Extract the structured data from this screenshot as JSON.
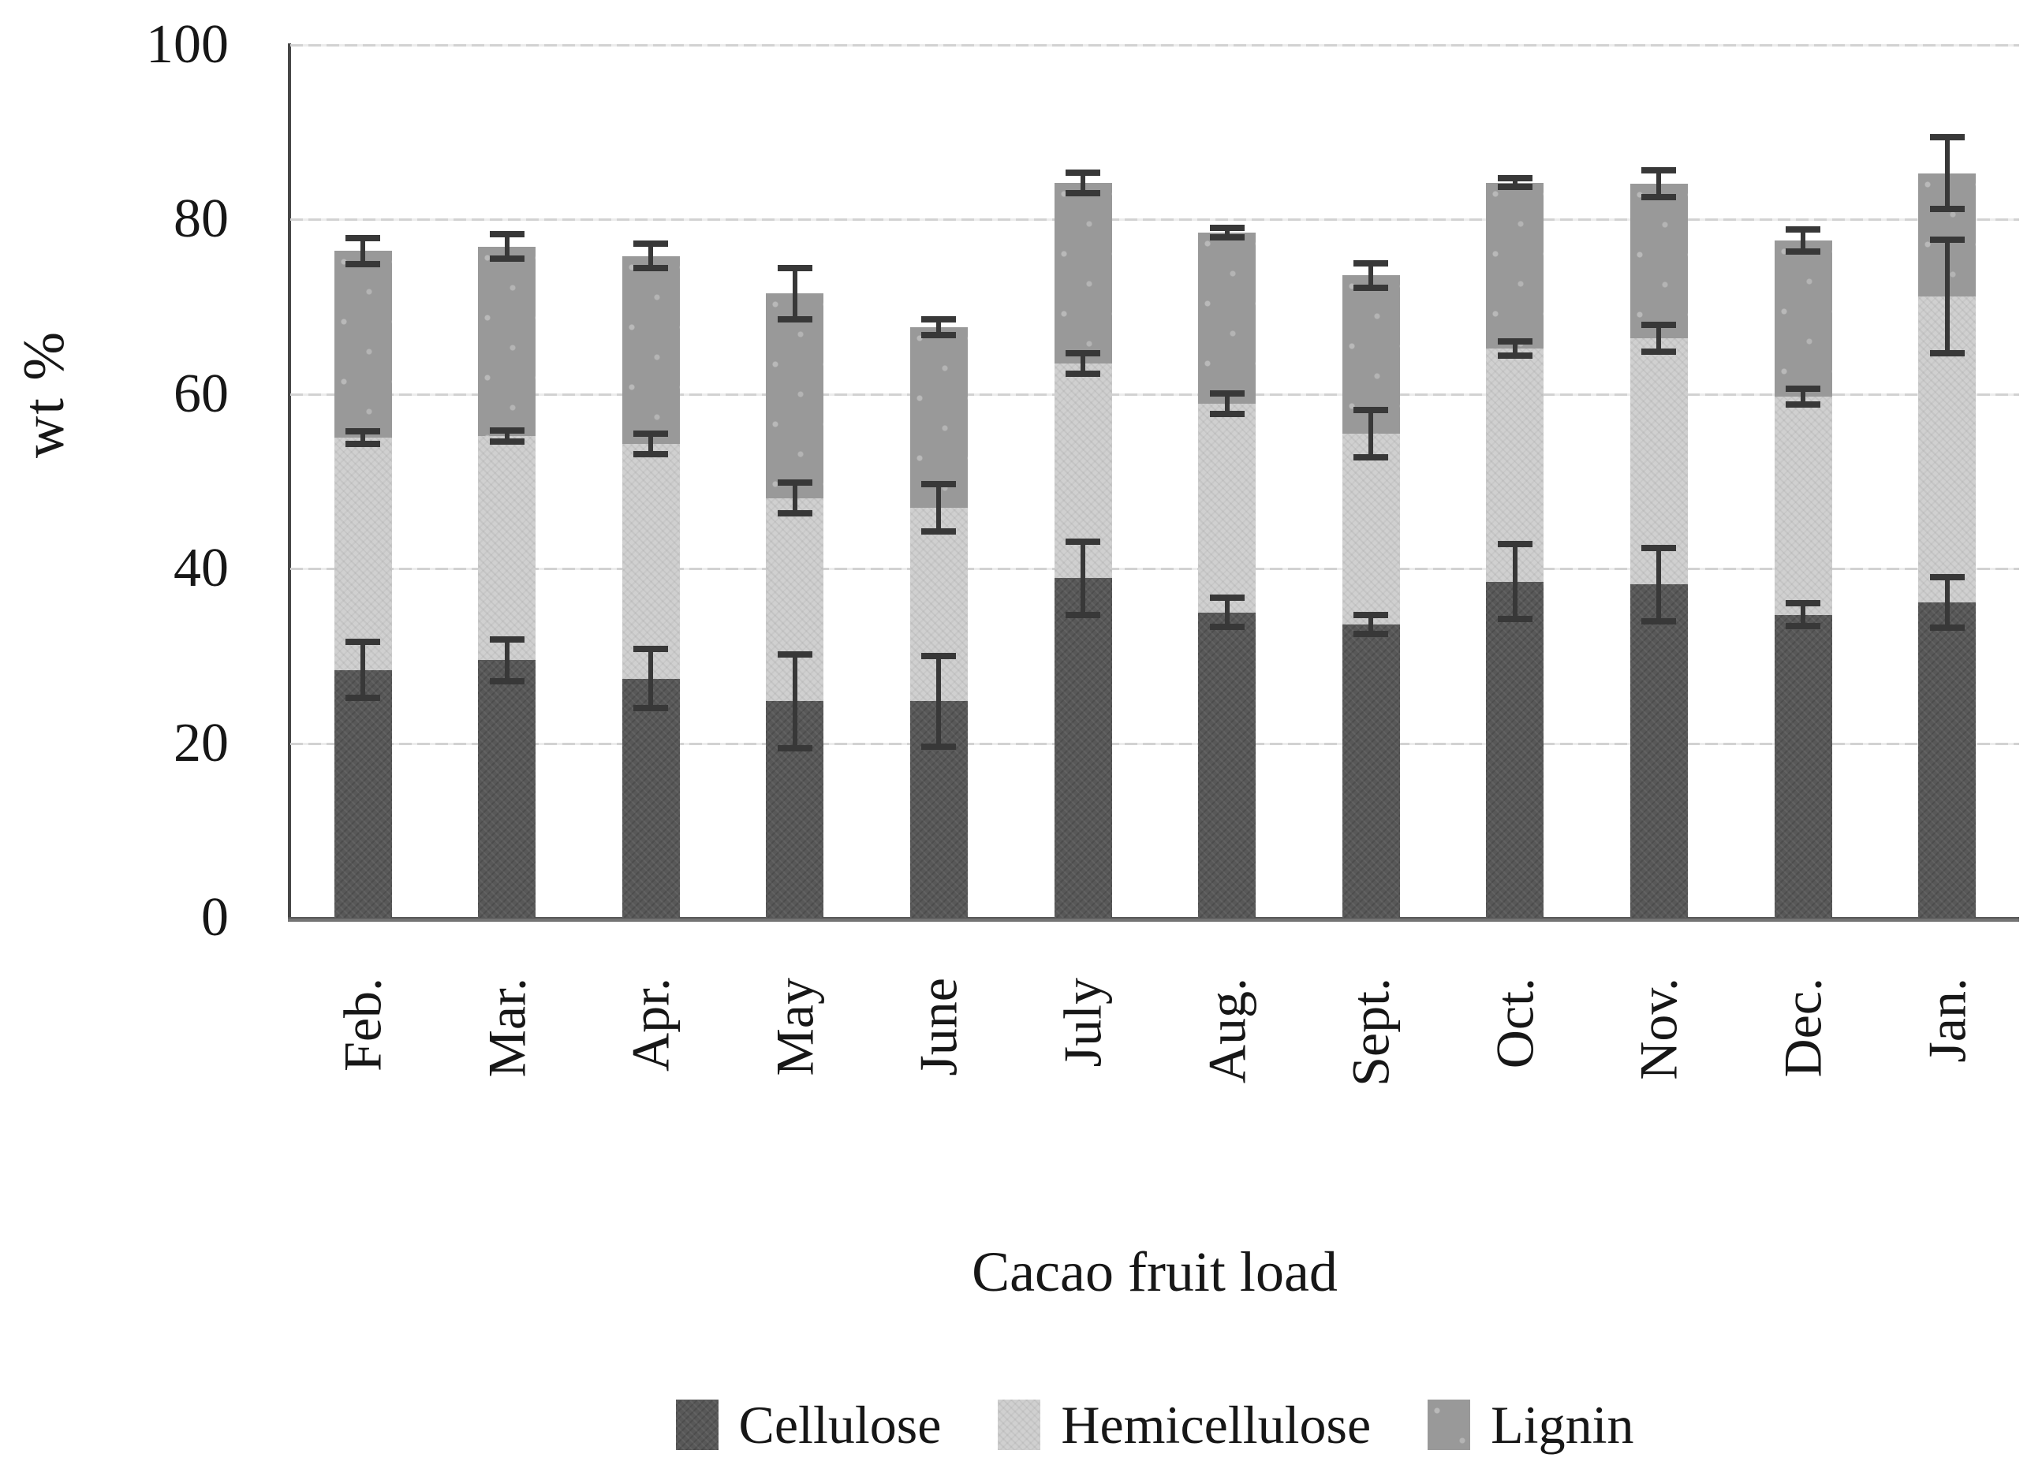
{
  "y_axis": {
    "title": "wt %",
    "ticks": [
      0,
      20,
      40,
      60,
      80,
      100
    ],
    "max": 100
  },
  "x_axis": {
    "title": "Cacao fruit load"
  },
  "legend": {
    "items": [
      "Cellulose",
      "Hemicellulose",
      "Lignin"
    ]
  },
  "colors": {
    "cellulose": "#585858",
    "hemicellulose": "#d0d0d0",
    "lignin": "#999999",
    "error_bar": "#383838",
    "gridline": "#d2d2d2",
    "axis": "#474747",
    "background": "#ffffff"
  },
  "chart_data": {
    "type": "bar",
    "stacked": true,
    "title": "",
    "xlabel": "Cacao fruit load",
    "ylabel": "wt %",
    "ylim": [
      0,
      100
    ],
    "grid": true,
    "legend_position": "bottom",
    "error_bars": true,
    "categories": [
      "Feb.",
      "Mar.",
      "Apr.",
      "May",
      "June",
      "July",
      "Aug.",
      "Sept.",
      "Oct.",
      "Nov.",
      "Dec.",
      "Jan."
    ],
    "series": [
      {
        "name": "Cellulose",
        "color": "#585858",
        "values": [
          28.4,
          29.5,
          27.4,
          24.8,
          24.8,
          38.9,
          35.0,
          33.6,
          38.5,
          38.2,
          34.7,
          36.1
        ],
        "error_plus_minus": [
          3.2,
          2.4,
          3.4,
          5.4,
          5.2,
          4.2,
          1.7,
          1.1,
          4.3,
          4.2,
          1.3,
          2.9
        ]
      },
      {
        "name": "Hemicellulose",
        "color": "#d0d0d0",
        "values": [
          26.6,
          25.7,
          26.9,
          23.3,
          22.2,
          24.6,
          23.9,
          21.9,
          26.7,
          28.2,
          25.0,
          35.1
        ],
        "error_plus_minus": [
          0.7,
          0.6,
          1.2,
          1.8,
          2.7,
          1.2,
          1.2,
          2.7,
          0.8,
          1.5,
          0.9,
          6.5
        ]
      },
      {
        "name": "Lignin",
        "color": "#999999",
        "values": [
          21.4,
          21.7,
          21.5,
          23.4,
          20.7,
          20.7,
          19.6,
          18.1,
          19.0,
          17.7,
          17.9,
          14.1
        ],
        "error_plus_minus": [
          1.5,
          1.4,
          1.4,
          2.9,
          0.9,
          1.2,
          0.5,
          1.4,
          0.5,
          1.5,
          1.3,
          4.1
        ]
      }
    ],
    "stack_totals": [
      76.4,
      76.9,
      75.8,
      71.5,
      67.7,
      84.2,
      78.5,
      73.6,
      84.2,
      84.1,
      77.6,
      85.3
    ]
  }
}
